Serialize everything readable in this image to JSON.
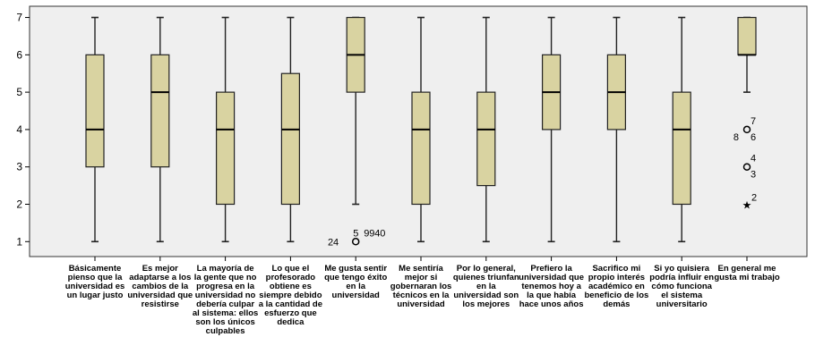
{
  "chart_data": {
    "type": "boxplot",
    "ylim": [
      0.6,
      7.3
    ],
    "yticks": [
      1,
      2,
      3,
      4,
      5,
      6,
      7
    ],
    "grid": false,
    "colors": {
      "plot_bg": "#efefef",
      "box_fill": "#d9d3a1",
      "box_stroke": "#222222"
    },
    "categories": [
      "Básicamente pienso que la universidad es un lugar justo",
      "Es mejor adaptarse a los cambios de la universidad que resistirse",
      "La mayoría de la gente que no progresa en la universidad no debería culpar al sistema: ellos son los únicos culpables",
      "Lo que el profesorado obtiene es siempre debido a la cantidad de esfuerzo que dedica",
      "Me gusta sentir que tengo éxito en la universidad",
      "Me sentiría mejor si gobernaran los técnicos en la universidad",
      "Por lo general, quienes triunfan en la universidad son los mejores",
      "Prefiero la universidad que tenemos hoy a la que había hace unos años",
      "Sacrifico mi propio interés académico en beneficio de los demás",
      "Si yo quisiera podría influir en cómo funciona el sistema universitario",
      "En general me gusta mi trabajo"
    ],
    "boxes": [
      {
        "min": 1,
        "q1": 3,
        "median": 4,
        "q3": 6,
        "max": 7
      },
      {
        "min": 1,
        "q1": 3,
        "median": 5,
        "q3": 6,
        "max": 7
      },
      {
        "min": 1,
        "q1": 2,
        "median": 4,
        "q3": 5,
        "max": 7
      },
      {
        "min": 1,
        "q1": 2,
        "median": 4,
        "q3": 5.5,
        "max": 7
      },
      {
        "min": 2,
        "q1": 5,
        "median": 6,
        "q3": 7,
        "max": 7
      },
      {
        "min": 1,
        "q1": 2,
        "median": 4,
        "q3": 5,
        "max": 7
      },
      {
        "min": 1,
        "q1": 2.5,
        "median": 4,
        "q3": 5,
        "max": 7
      },
      {
        "min": 1,
        "q1": 4,
        "median": 5,
        "q3": 6,
        "max": 7
      },
      {
        "min": 1,
        "q1": 4,
        "median": 5,
        "q3": 6,
        "max": 7
      },
      {
        "min": 1,
        "q1": 2,
        "median": 4,
        "q3": 5,
        "max": 7
      },
      {
        "min": 5,
        "q1": 6,
        "median": 6,
        "q3": 7,
        "max": 7
      }
    ],
    "outliers": [
      {
        "category": 4,
        "y": 1,
        "marker": "circle",
        "labels": [
          "24",
          "5",
          "99",
          "40"
        ]
      },
      {
        "category": 10,
        "y": 4,
        "marker": "circle",
        "labels": [
          "7",
          "8",
          "6"
        ]
      },
      {
        "category": 10,
        "y": 3,
        "marker": "circle",
        "labels": [
          "4",
          "3"
        ]
      },
      {
        "category": 10,
        "y": 2,
        "marker": "star",
        "labels": [
          "2"
        ]
      }
    ]
  }
}
